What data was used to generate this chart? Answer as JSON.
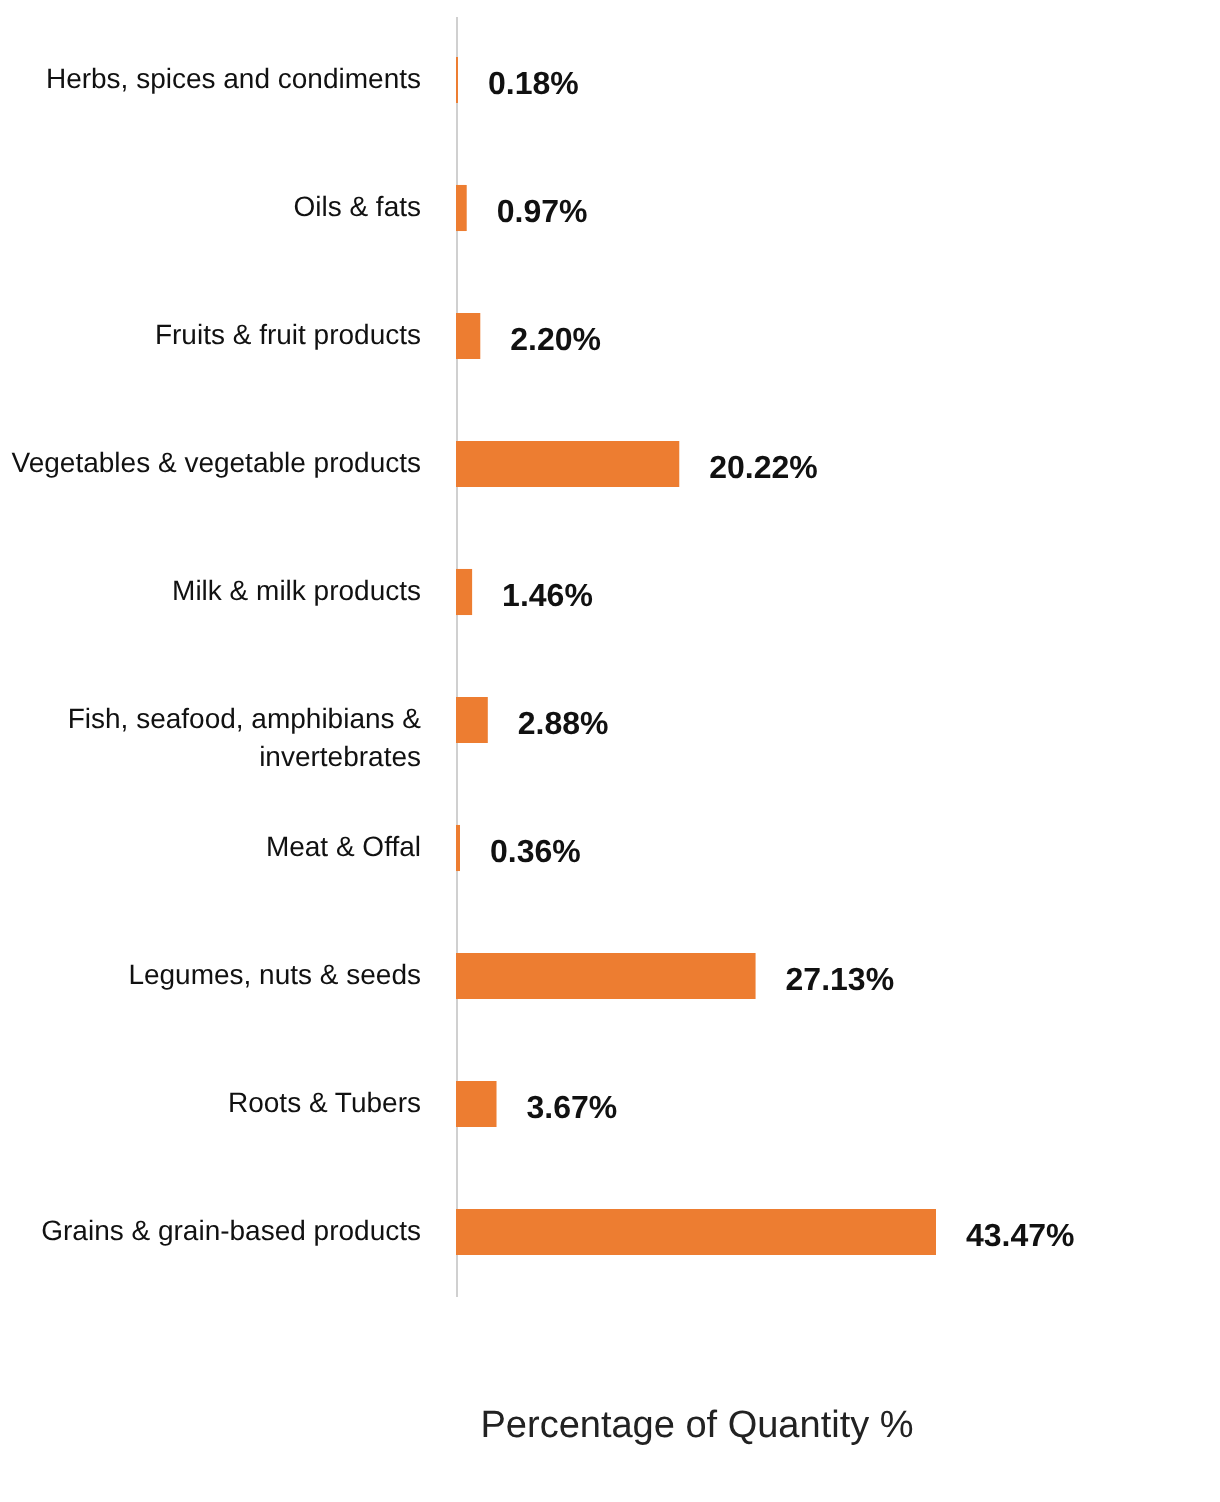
{
  "chart_data": {
    "type": "bar",
    "orientation": "horizontal",
    "xlabel": "Percentage of Quantity %",
    "categories": [
      "Herbs, spices and condiments",
      "Oils & fats",
      "Fruits & fruit products",
      "Vegetables & vegetable products",
      "Milk & milk products",
      "Fish, seafood, amphibians & invertebrates",
      "Meat & Offal",
      "Legumes, nuts & seeds",
      "Roots & Tubers",
      "Grains & grain-based products"
    ],
    "values": [
      0.18,
      0.97,
      2.2,
      20.22,
      1.46,
      2.88,
      0.36,
      27.13,
      3.67,
      43.47
    ],
    "value_labels": [
      "0.18%",
      "0.97%",
      "2.20%",
      "20.22%",
      "1.46%",
      "2.88%",
      "0.36%",
      "27.13%",
      "3.67%",
      "43.47%"
    ],
    "color": "#ed7d31",
    "grid": false
  }
}
